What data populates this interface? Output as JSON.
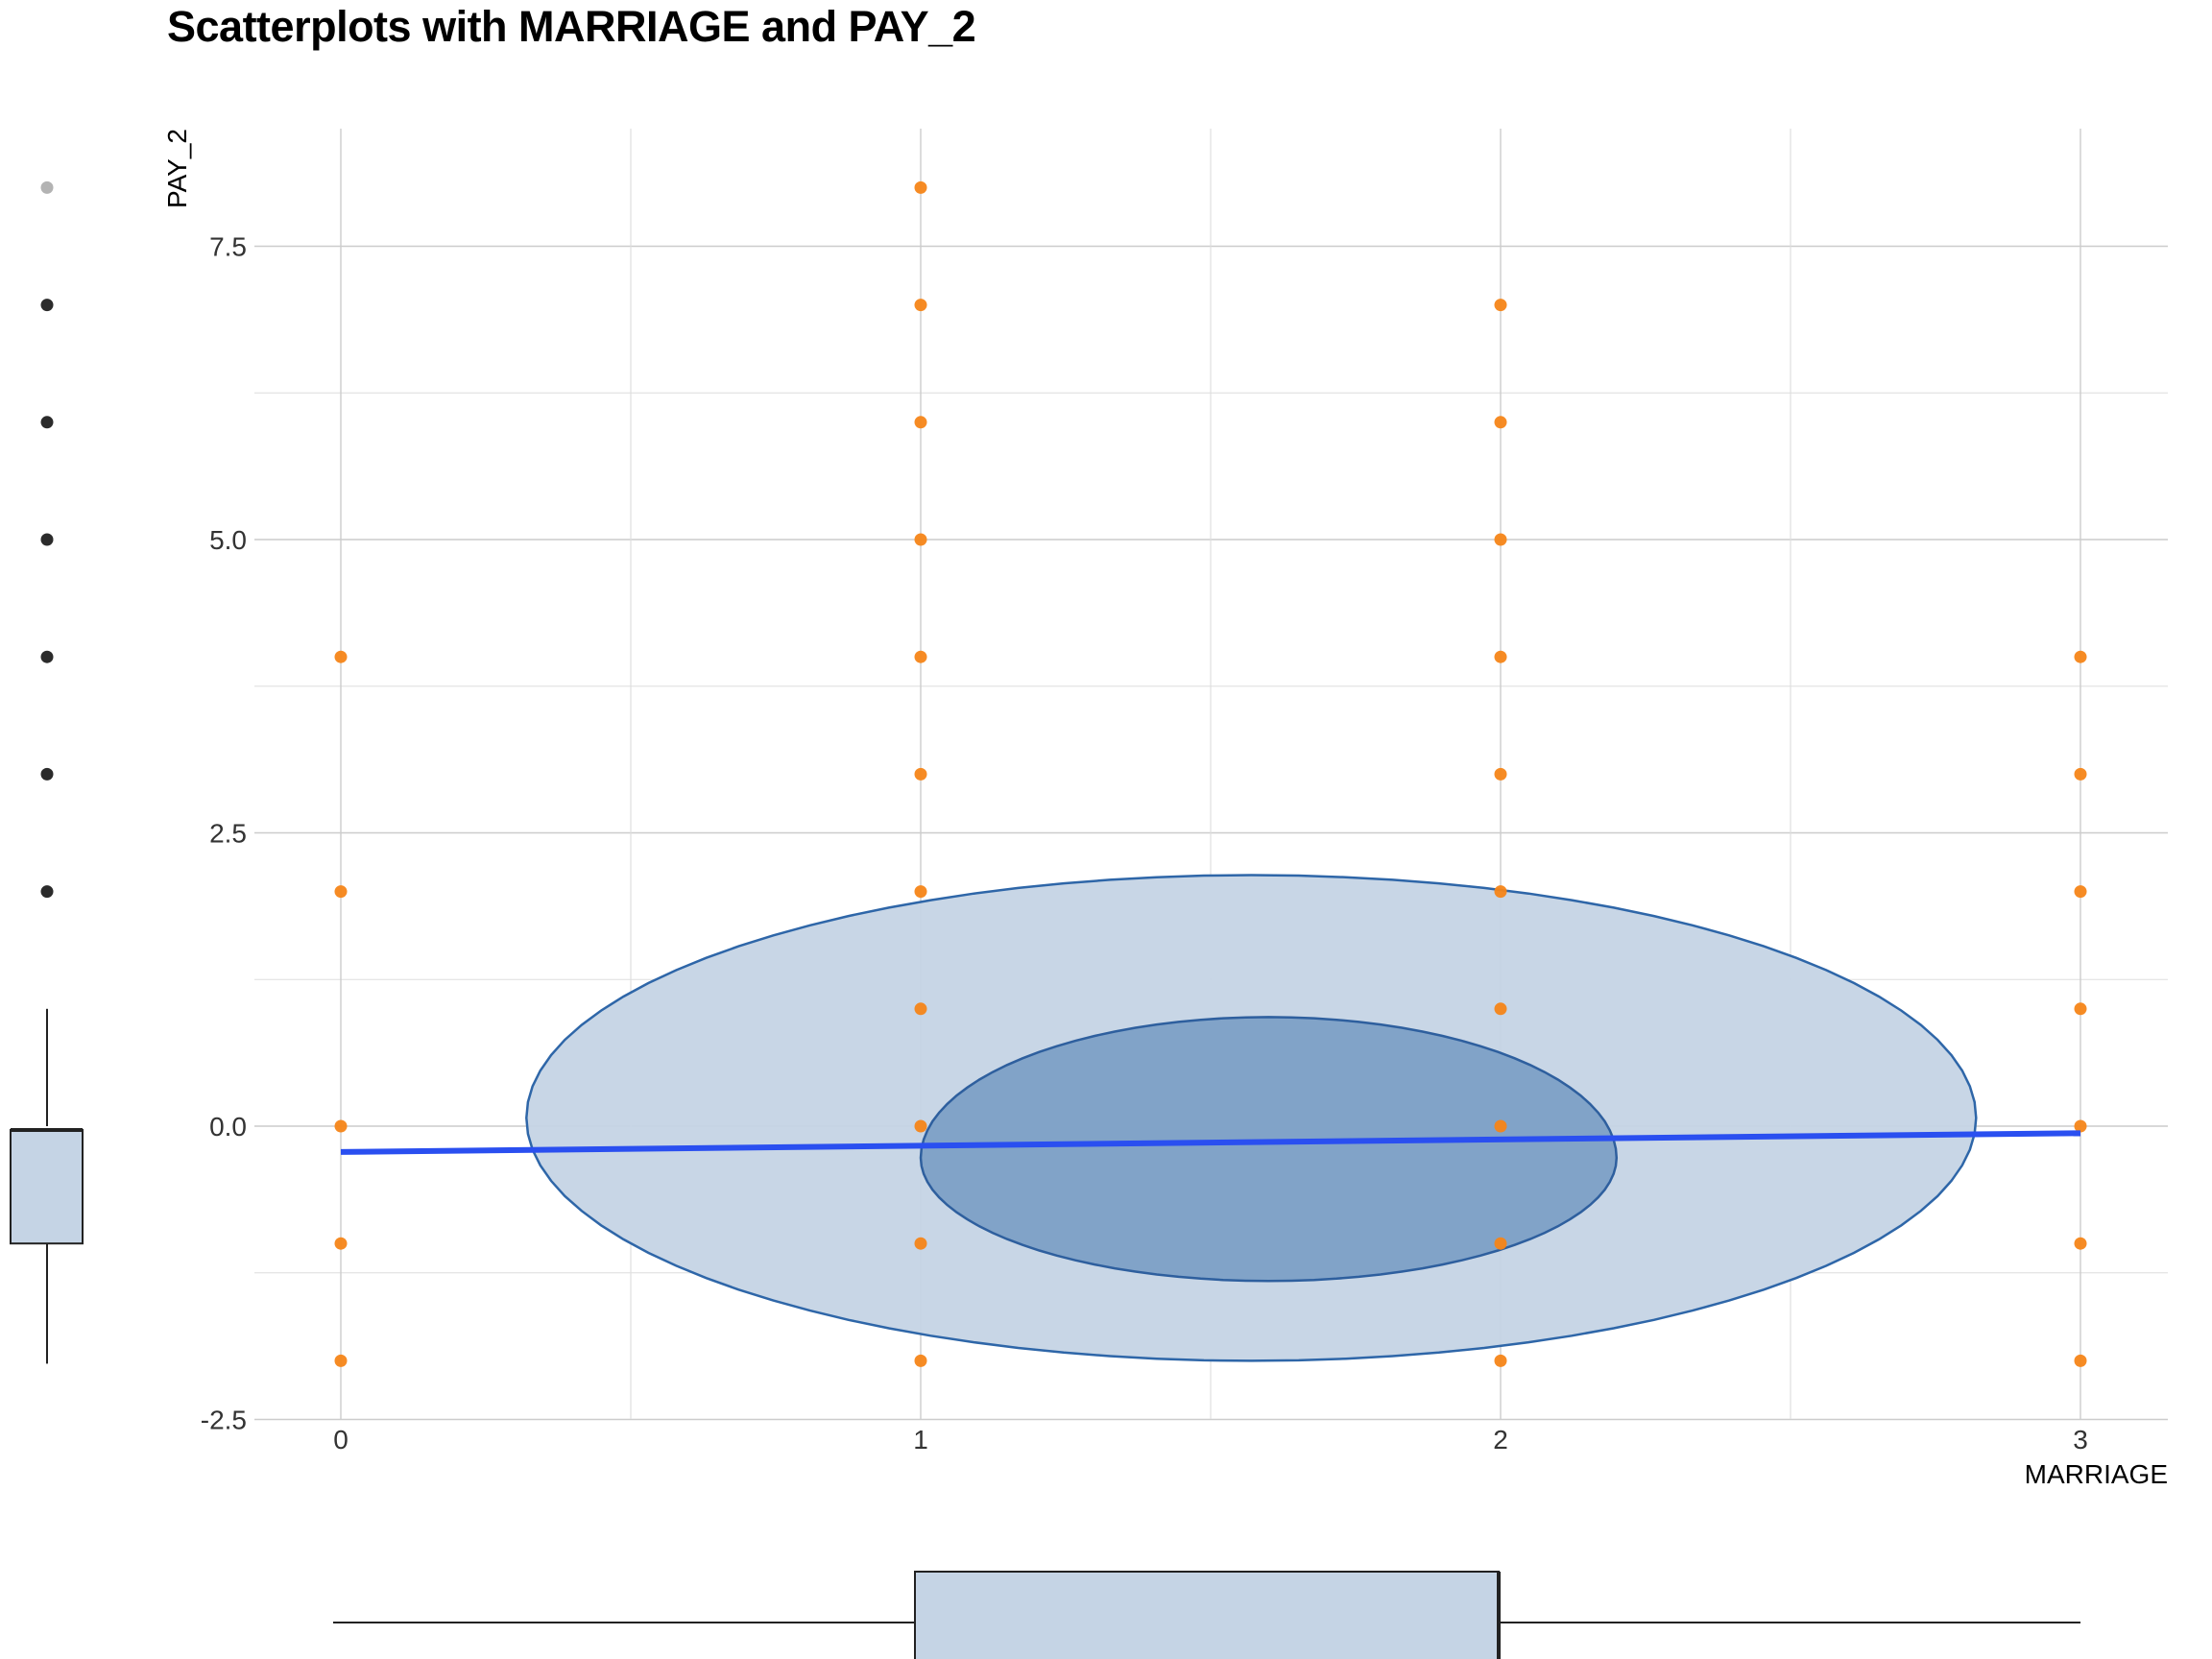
{
  "chart_data": {
    "type": "scatter",
    "title": "Scatterplots with MARRIAGE and PAY_2",
    "xlabel": "MARRIAGE",
    "ylabel": "PAY_2",
    "xlim": [
      -0.15,
      3.15
    ],
    "ylim": [
      -2.5,
      8.5
    ],
    "x_ticks": [
      0,
      1,
      2,
      3
    ],
    "x_tick_labels": [
      "0",
      "1",
      "2",
      "3"
    ],
    "y_ticks": [
      -2.5,
      0,
      2.5,
      5,
      7.5
    ],
    "y_tick_labels": [
      "-2.5",
      "0.0",
      "2.5",
      "5.0",
      "7.5"
    ],
    "grid": true,
    "points": [
      {
        "x": 0,
        "y": 4
      },
      {
        "x": 0,
        "y": 2
      },
      {
        "x": 0,
        "y": 0
      },
      {
        "x": 0,
        "y": -1
      },
      {
        "x": 0,
        "y": -2
      },
      {
        "x": 1,
        "y": 8
      },
      {
        "x": 1,
        "y": 7
      },
      {
        "x": 1,
        "y": 6
      },
      {
        "x": 1,
        "y": 5
      },
      {
        "x": 1,
        "y": 4
      },
      {
        "x": 1,
        "y": 3
      },
      {
        "x": 1,
        "y": 2
      },
      {
        "x": 1,
        "y": 1
      },
      {
        "x": 1,
        "y": 0
      },
      {
        "x": 1,
        "y": -1
      },
      {
        "x": 1,
        "y": -2
      },
      {
        "x": 2,
        "y": 7
      },
      {
        "x": 2,
        "y": 6
      },
      {
        "x": 2,
        "y": 5
      },
      {
        "x": 2,
        "y": 4
      },
      {
        "x": 2,
        "y": 3
      },
      {
        "x": 2,
        "y": 2
      },
      {
        "x": 2,
        "y": 1
      },
      {
        "x": 2,
        "y": 0
      },
      {
        "x": 2,
        "y": -1
      },
      {
        "x": 2,
        "y": -2
      },
      {
        "x": 3,
        "y": 4
      },
      {
        "x": 3,
        "y": 3
      },
      {
        "x": 3,
        "y": 2
      },
      {
        "x": 3,
        "y": 1
      },
      {
        "x": 3,
        "y": 0
      },
      {
        "x": 3,
        "y": -1
      },
      {
        "x": 3,
        "y": -2
      }
    ],
    "point_color": "#f58518",
    "regression_line": {
      "x": [
        0,
        3
      ],
      "y": [
        -0.22,
        -0.06
      ],
      "color": "#2a4ff0"
    },
    "density_contours": [
      {
        "level": "outer",
        "center": [
          1.57,
          0.07
        ],
        "rx": 1.25,
        "ry_top": 2.07,
        "ry_bottom": 2.07,
        "y_floor": -2.0,
        "fill": "#c5d4e5",
        "stroke": "#2e66a8"
      },
      {
        "level": "inner",
        "center": [
          1.6,
          -0.27
        ],
        "rx": 0.6,
        "ry_top": 1.2,
        "ry_bottom": 1.05,
        "fill": "#7da0c6",
        "stroke": "#2e5f9e"
      }
    ],
    "x_marginal_boxplot": {
      "whisker_low": 0,
      "q1": 1,
      "median": 2,
      "q3": 2,
      "whisker_high": 3
    },
    "y_marginal_boxplot": {
      "whisker_low": -2,
      "q1": -1,
      "median": 0,
      "q3": 0,
      "whisker_high": 1,
      "outliers": [
        2,
        3,
        4,
        5,
        6,
        7,
        8
      ]
    },
    "box_fill": "#c5d4e5",
    "box_stroke": "#222222"
  }
}
